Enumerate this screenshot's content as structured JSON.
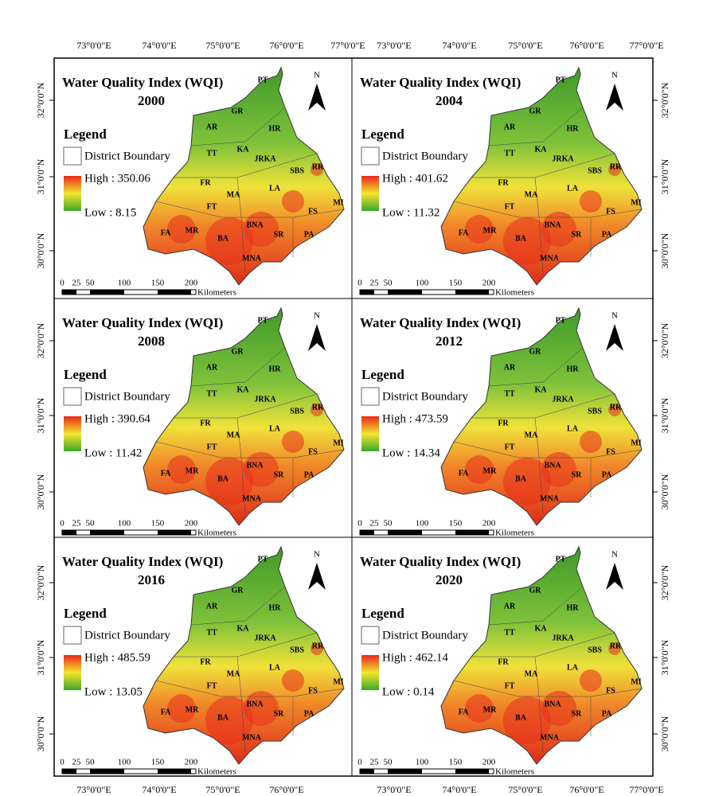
{
  "top_axis_labels": [
    "73°0'0\"E",
    "74°0'0\"E",
    "75°0'0\"E",
    "76°0'0\"E",
    "77°0'0\"E",
    "73°0'0\"E",
    "74°0'0\"E",
    "75°0'0\"E",
    "76°0'0\"E",
    "77°0'0\"E"
  ],
  "bottom_axis_labels": [
    "73°0'0\"E",
    "74°0'0\"E",
    "75°0'0\"E",
    "76°0'0\"E",
    "73°0'0\"E",
    "74°0'0\"E",
    "75°0'0\"E",
    "76°0'0\"E",
    "77°0'0\"E"
  ],
  "left_axis_labels": [
    "32°0'0\"N",
    "31°0'0\"N",
    "30°0'0\"N",
    "32°0'0\"N",
    "31°0'0\"N",
    "30°0'0\"N",
    "32°0'0\"N",
    "31°0'0\"N",
    "30°0'0\"N"
  ],
  "right_axis_labels": [
    "32°0'0\"N",
    "31°0'0\"N",
    "30°0'0\"N",
    "32°0'0\"N",
    "31°0'0\"N",
    "30°0'0\"N",
    "32°0'0\"N",
    "31°0'0\"N",
    "30°0'0\"N"
  ],
  "panels": [
    {
      "title": "Water Quality Index (WQI)",
      "year": "2000",
      "legend_title": "Legend",
      "boundary_label": "District Boundary",
      "high": "High : 350.06",
      "low": "Low : 8.15",
      "north": "N",
      "scale_ticks": [
        "0",
        "25",
        "50",
        "100",
        "150",
        "200"
      ],
      "scale_unit": "Kilometers",
      "districts": [
        "PT",
        "GR",
        "AR",
        "HR",
        "TT",
        "KA",
        "JRKA",
        "SBS",
        "RR",
        "FR",
        "LA",
        "MA",
        "FT",
        "MI",
        "FS",
        "FA",
        "MR",
        "BA",
        "BNA",
        "SR",
        "PA",
        "MNA"
      ]
    },
    {
      "title": "Water Quality Index (WQI)",
      "year": "2004",
      "legend_title": "Legend",
      "boundary_label": "District Boundary",
      "high": "High : 401.62",
      "low": "Low : 11.32",
      "north": "N",
      "scale_ticks": [
        "0",
        "25",
        "50",
        "100",
        "150",
        "200"
      ],
      "scale_unit": "Kilometers",
      "districts": [
        "PT",
        "GR",
        "AR",
        "HR",
        "TT",
        "KA",
        "JRKA",
        "SBS",
        "RR",
        "FR",
        "LA",
        "MA",
        "FT",
        "MI",
        "FS",
        "FA",
        "MR",
        "BA",
        "BNA",
        "SR",
        "PA",
        "MNA"
      ]
    },
    {
      "title": "Water Quality Index (WQI)",
      "year": "2008",
      "legend_title": "Legend",
      "boundary_label": "District Boundary",
      "high": "High : 390.64",
      "low": "Low : 11.42",
      "north": "N",
      "scale_ticks": [
        "0",
        "25",
        "50",
        "100",
        "150",
        "200"
      ],
      "scale_unit": "Kilometers",
      "districts": [
        "PT",
        "GR",
        "AR",
        "HR",
        "TT",
        "KA",
        "JRKA",
        "SBS",
        "RR",
        "FR",
        "LA",
        "MA",
        "FT",
        "MI",
        "FS",
        "FA",
        "MR",
        "BA",
        "BNA",
        "SR",
        "PA",
        "MNA"
      ]
    },
    {
      "title": "Water Quality Index (WQI)",
      "year": "2012",
      "legend_title": "Legend",
      "boundary_label": "District Boundary",
      "high": "High : 473.59",
      "low": "Low : 14.34",
      "north": "N",
      "scale_ticks": [
        "0",
        "25",
        "50",
        "100",
        "150",
        "200"
      ],
      "scale_unit": "Kilometers",
      "districts": [
        "PT",
        "GR",
        "AR",
        "HR",
        "TT",
        "KA",
        "JRKA",
        "SBS",
        "RR",
        "FR",
        "LA",
        "MA",
        "FT",
        "MI",
        "FS",
        "FA",
        "MR",
        "BA",
        "BNA",
        "SR",
        "PA",
        "MNA"
      ]
    },
    {
      "title": "Water Quality Index (WQI)",
      "year": "2016",
      "legend_title": "Legend",
      "boundary_label": "District Boundary",
      "high": "High : 485.59",
      "low": "Low : 13.05",
      "north": "N",
      "scale_ticks": [
        "0",
        "25",
        "50",
        "100",
        "150",
        "200"
      ],
      "scale_unit": "Kilometers",
      "districts": [
        "PT",
        "GR",
        "AR",
        "HR",
        "TT",
        "KA",
        "JRKA",
        "SBS",
        "RR",
        "FR",
        "LA",
        "MA",
        "FT",
        "MI",
        "FS",
        "FA",
        "MR",
        "BA",
        "BNA",
        "SR",
        "PA",
        "MNA"
      ]
    },
    {
      "title": "Water Quality Index (WQI)",
      "year": "2020",
      "legend_title": "Legend",
      "boundary_label": "District Boundary",
      "high": "High : 462.14",
      "low": "Low : 0.14",
      "north": "N",
      "scale_ticks": [
        "0",
        "25",
        "50",
        "100",
        "150",
        "200"
      ],
      "scale_unit": "Kilometers",
      "districts": [
        "PT",
        "GR",
        "AR",
        "HR",
        "TT",
        "KA",
        "JRKA",
        "SBS",
        "RR",
        "FR",
        "LA",
        "MA",
        "FT",
        "MI",
        "FS",
        "FA",
        "MR",
        "BA",
        "BNA",
        "SR",
        "PA",
        "MNA"
      ]
    }
  ]
}
